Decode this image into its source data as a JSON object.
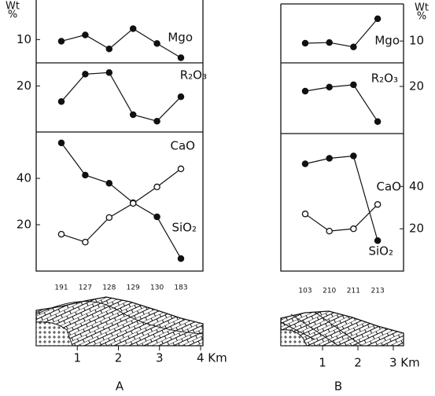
{
  "chart_data": [
    {
      "type": "line",
      "categories": [
        "191",
        "127",
        "128",
        "129",
        "130",
        "183"
      ],
      "ylim": [
        0,
        27
      ],
      "yticks": [
        10
      ],
      "series": [
        {
          "name": "Mgo",
          "color": "#111",
          "marker": "filled",
          "values": [
            9.3,
            12,
            6,
            14.7,
            8.3,
            2.2
          ]
        }
      ]
    },
    {
      "type": "line",
      "categories": [
        "191",
        "127",
        "128",
        "129",
        "130",
        "183"
      ],
      "ylim": [
        0,
        30
      ],
      "yticks": [
        20
      ],
      "series": [
        {
          "name": "R₂O₃",
          "color": "#111",
          "marker": "filled",
          "values": [
            13.2,
            25.1,
            25.8,
            7.5,
            4.7,
            15.3
          ]
        }
      ]
    },
    {
      "type": "line",
      "categories": [
        "191",
        "127",
        "128",
        "129",
        "130",
        "183"
      ],
      "ylim": [
        0,
        60
      ],
      "yticks": [
        20,
        40
      ],
      "series": [
        {
          "name": "CaO",
          "color": "#111",
          "marker": "filled",
          "values": [
            55.3,
            41.4,
            37.9,
            29.5,
            23.4,
            5.4
          ]
        },
        {
          "name": "SiO₂",
          "color": "#111",
          "marker": "open",
          "values": [
            15.9,
            12.5,
            23.1,
            29.2,
            36.3,
            44.1
          ]
        }
      ]
    },
    {
      "type": "line",
      "categories": [
        "103",
        "210",
        "211",
        "213"
      ],
      "ylim": [
        0,
        27
      ],
      "yticks": [
        10
      ],
      "series": [
        {
          "name": "Mgo",
          "color": "#111",
          "marker": "filled",
          "values": [
            9.0,
            9.3,
            7.3,
            20.2
          ]
        }
      ]
    },
    {
      "type": "line",
      "categories": [
        "103",
        "210",
        "211",
        "213"
      ],
      "ylim": [
        0,
        30
      ],
      "yticks": [
        20
      ],
      "series": [
        {
          "name": "R₂O₃",
          "color": "#111",
          "marker": "filled",
          "values": [
            18,
            19.7,
            20.7,
            5.1
          ]
        }
      ]
    },
    {
      "type": "line",
      "categories": [
        "103",
        "210",
        "211",
        "213"
      ],
      "ylim": [
        0,
        65
      ],
      "yticks": [
        20,
        40
      ],
      "series": [
        {
          "name": "CaO",
          "color": "#111",
          "marker": "filled",
          "values": [
            50.7,
            53.3,
            54.4,
            14.4
          ]
        },
        {
          "name": "SiO₂",
          "color": "#111",
          "marker": "open",
          "values": [
            27,
            18.9,
            20,
            31.5
          ]
        }
      ]
    }
  ],
  "sections": [
    {
      "label": "A",
      "unit": [
        "Wt",
        "%"
      ],
      "xlim": [
        0,
        4
      ],
      "xticks": [
        1,
        2,
        3,
        {
          "value": 4,
          "label": "4 Km"
        }
      ]
    },
    {
      "label": "B",
      "unit": [
        "Wt",
        "%"
      ],
      "xlim": [
        0,
        3
      ],
      "xticks": [
        1,
        2,
        {
          "value": 3,
          "label": "3 Km"
        }
      ]
    }
  ]
}
